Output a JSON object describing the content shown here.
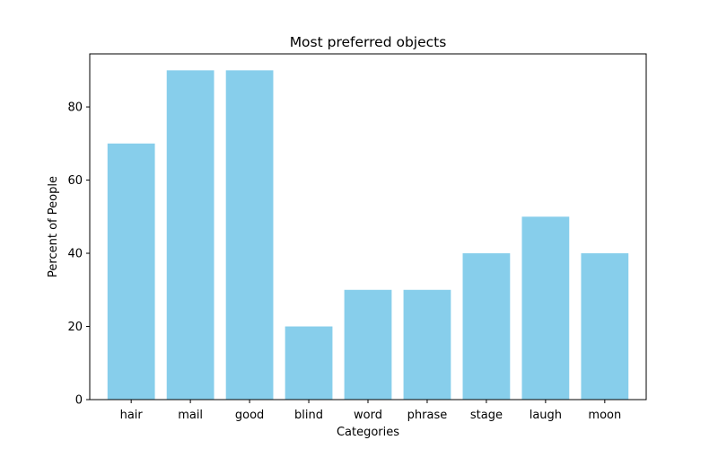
{
  "chart_data": {
    "type": "bar",
    "title": "Most preferred objects",
    "xlabel": "Categories",
    "ylabel": "Percent of People",
    "categories": [
      "hair",
      "mail",
      "good",
      "blind",
      "word",
      "phrase",
      "stage",
      "laugh",
      "moon"
    ],
    "values": [
      70,
      90,
      90,
      20,
      30,
      30,
      40,
      50,
      40
    ],
    "ylim": [
      0,
      94.5
    ],
    "yticks": [
      0,
      20,
      40,
      60,
      80
    ],
    "grid": false,
    "bar_color": "#87ceeb"
  }
}
